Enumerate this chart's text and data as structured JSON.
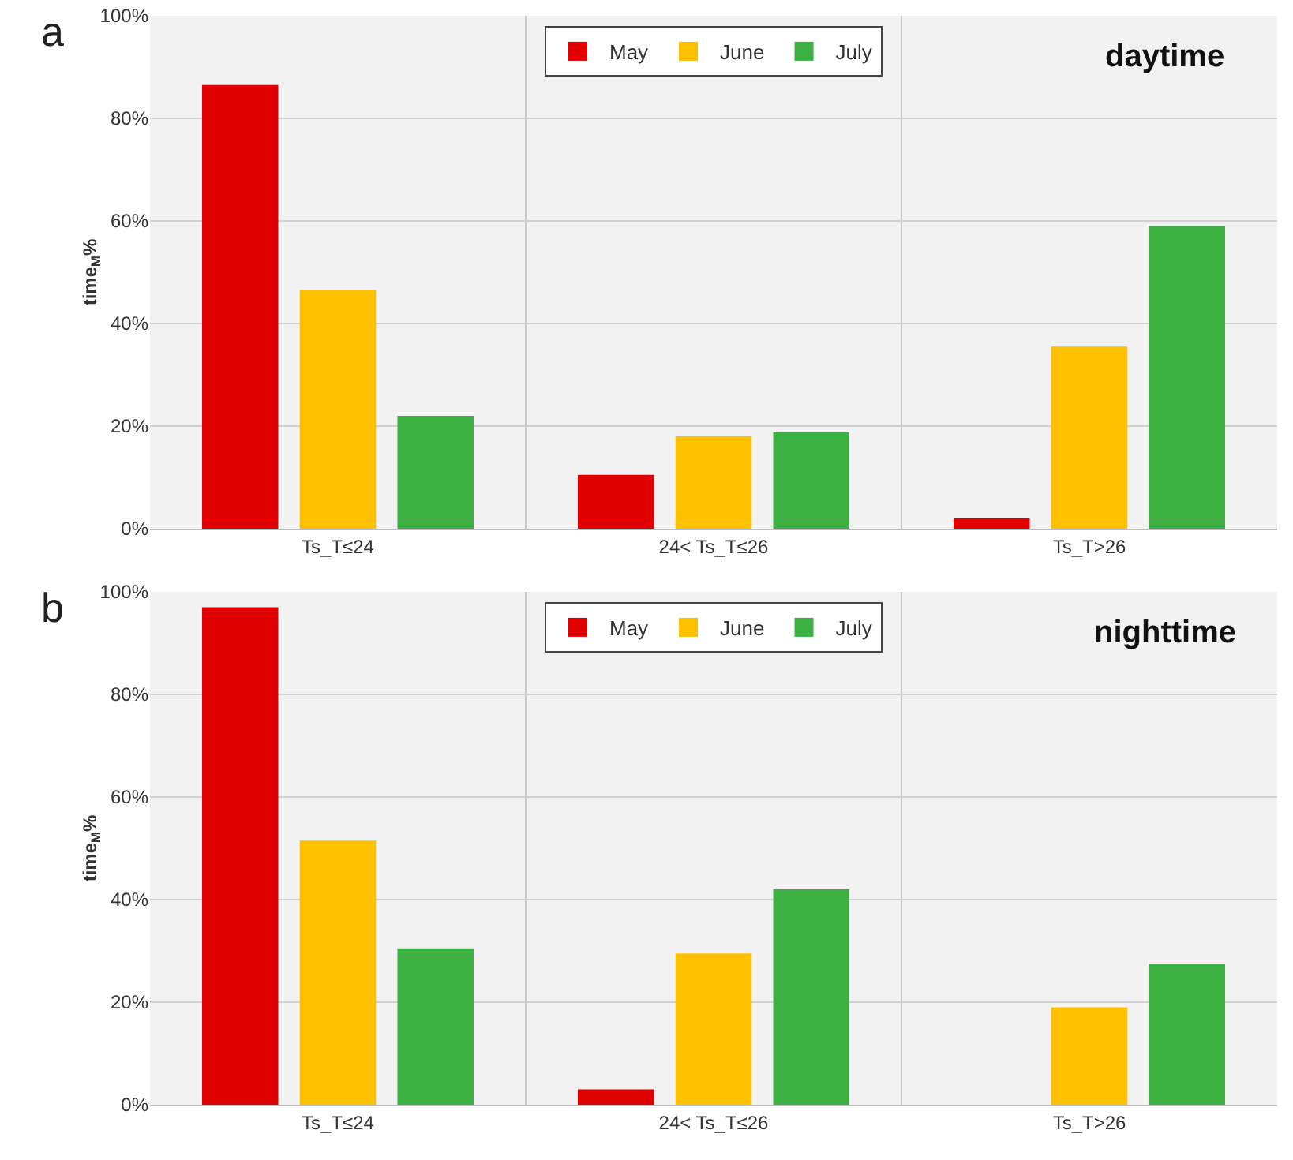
{
  "chart_data": [
    {
      "type": "bar",
      "title": "a",
      "ylabel": "time$_{M}$%",
      "annotations": [
        "daytime"
      ],
      "categories": [
        "Ts_T≤24",
        "24< Ts_T≤26",
        "Ts_T>26"
      ],
      "series": [
        {
          "name": "May",
          "color": "#e00000",
          "values": [
            86.5,
            10.5,
            2
          ]
        },
        {
          "name": "June",
          "color": "#ffc000",
          "values": [
            46.5,
            18,
            35.5
          ]
        },
        {
          "name": "July",
          "color": "#3cb043",
          "values": [
            22,
            18.8,
            59
          ]
        }
      ],
      "ylim": [
        0,
        100
      ],
      "yticks": [
        {
          "value": 0,
          "label": "0%"
        },
        {
          "value": 20,
          "label": "20%"
        },
        {
          "value": 40,
          "label": "40%"
        },
        {
          "value": 60,
          "label": "60%"
        },
        {
          "value": 80,
          "label": "80%"
        },
        {
          "value": 100,
          "label": "100%"
        }
      ],
      "grid": true,
      "legend": "top"
    },
    {
      "type": "bar",
      "title": "b",
      "ylabel": "time$_{M}$%",
      "annotations": [
        "nighttime"
      ],
      "categories": [
        "Ts_T≤24",
        "24< Ts_T≤26",
        "Ts_T>26"
      ],
      "series": [
        {
          "name": "May",
          "color": "#e00000",
          "values": [
            97,
            3,
            0
          ]
        },
        {
          "name": "June",
          "color": "#ffc000",
          "values": [
            51.5,
            29.5,
            19
          ]
        },
        {
          "name": "July",
          "color": "#3cb043",
          "values": [
            30.5,
            42,
            27.5
          ]
        }
      ],
      "ylim": [
        0,
        100
      ],
      "yticks": [
        {
          "value": 0,
          "label": "0%"
        },
        {
          "value": 20,
          "label": "20%"
        },
        {
          "value": 40,
          "label": "40%"
        },
        {
          "value": 60,
          "label": "60%"
        },
        {
          "value": 80,
          "label": "80%"
        },
        {
          "value": 100,
          "label": "100%"
        }
      ],
      "grid": true,
      "legend": "top"
    }
  ]
}
